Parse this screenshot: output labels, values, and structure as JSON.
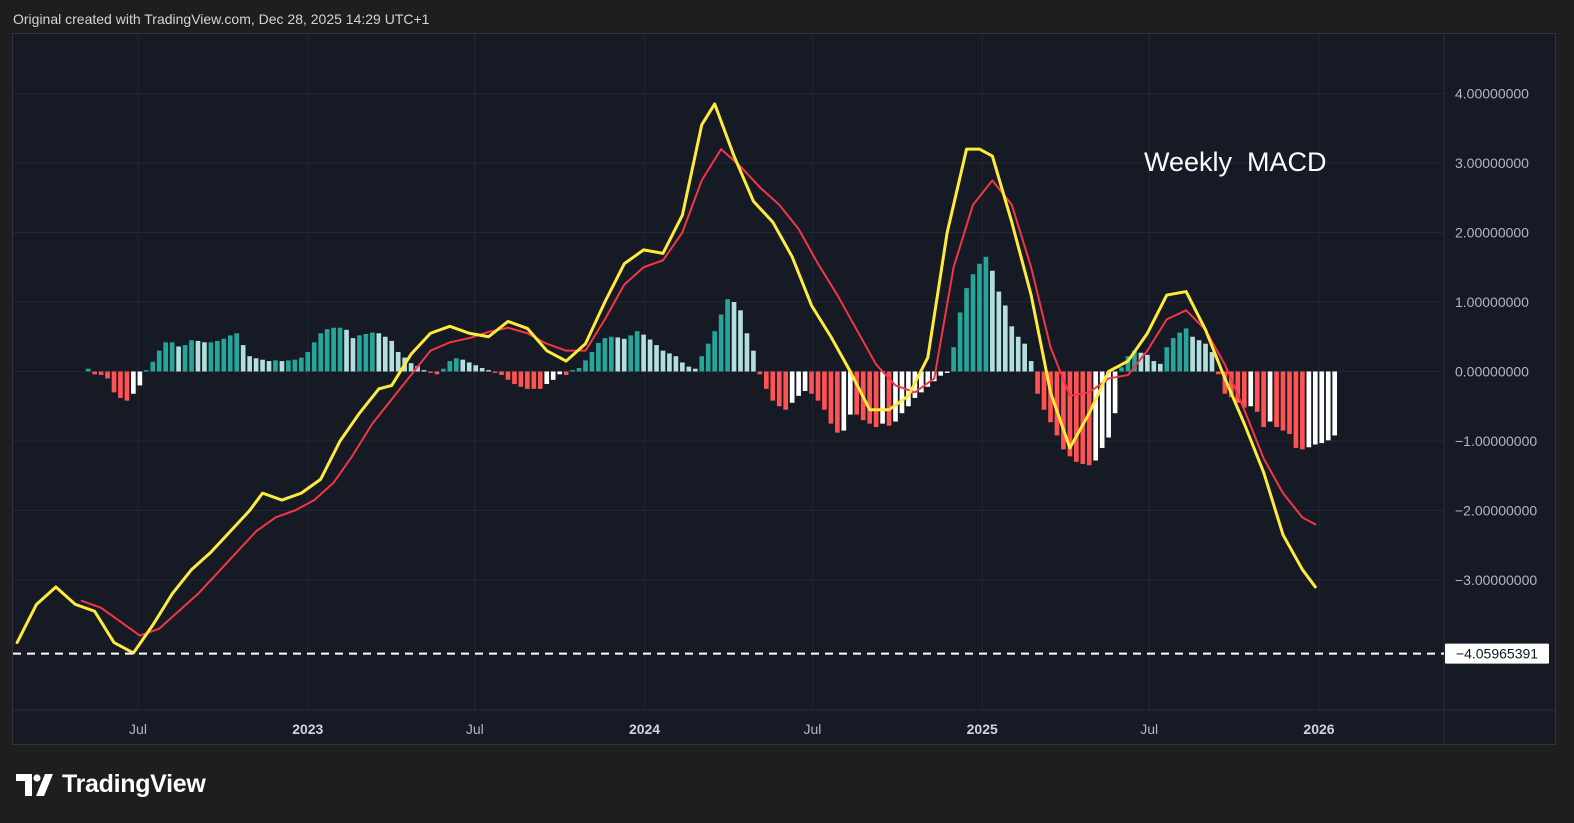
{
  "header": {
    "note": "Original created with TradingView.com, Dec 28, 2025 14:29 UTC+1"
  },
  "brand": {
    "name": "TradingView"
  },
  "colors": {
    "background": "#161a25",
    "grid": "#232734",
    "macd_line": "#ffeb3b",
    "signal_line": "#f23645",
    "hist_pos_rising": "#26a69a",
    "hist_pos_falling": "#b2dfdb",
    "hist_neg_falling": "#ff5252",
    "hist_neg_rising": "#ffffff",
    "axis_text": "#b2b5be"
  },
  "chart_data": {
    "type": "line",
    "title": "",
    "annotation": "Weekly  MACD",
    "xlabel": "",
    "ylabel": "",
    "ylim": [
      -4.8,
      5.2
    ],
    "grid": true,
    "legend": "none",
    "x_ticks": [
      {
        "label": "Jul",
        "date": "2022-07-01",
        "bold": false
      },
      {
        "label": "2023",
        "date": "2023-01-01",
        "bold": true
      },
      {
        "label": "Jul",
        "date": "2023-07-01",
        "bold": false
      },
      {
        "label": "2024",
        "date": "2024-01-01",
        "bold": true
      },
      {
        "label": "Jul",
        "date": "2024-07-01",
        "bold": false
      },
      {
        "label": "2025",
        "date": "2025-01-01",
        "bold": true
      },
      {
        "label": "Jul",
        "date": "2025-07-01",
        "bold": false
      },
      {
        "label": "2026",
        "date": "2026-01-01",
        "bold": true
      }
    ],
    "y_ticks": [
      {
        "value": 4,
        "label": "4.00000000"
      },
      {
        "value": 3,
        "label": "3.00000000"
      },
      {
        "value": 2,
        "label": "2.00000000"
      },
      {
        "value": 1,
        "label": "1.00000000"
      },
      {
        "value": 0,
        "label": "0.00000000"
      },
      {
        "value": -1,
        "label": "−1.00000000"
      },
      {
        "value": -2,
        "label": "−2.00000000"
      },
      {
        "value": -3,
        "label": "−3.00000000"
      }
    ],
    "horizontal_line": {
      "value": -4.05965391,
      "label": "−4.05965391",
      "style": "dashed"
    },
    "series": [
      {
        "name": "",
        "role": "macd",
        "points": [
          [
            "2022-02-20",
            -3.9
          ],
          [
            "2022-03-13",
            -3.35
          ],
          [
            "2022-04-03",
            -3.1
          ],
          [
            "2022-04-24",
            -3.35
          ],
          [
            "2022-05-15",
            -3.45
          ],
          [
            "2022-06-05",
            -3.9
          ],
          [
            "2022-06-26",
            -4.05
          ],
          [
            "2022-07-17",
            -3.65
          ],
          [
            "2022-08-07",
            -3.2
          ],
          [
            "2022-08-28",
            -2.85
          ],
          [
            "2022-09-18",
            -2.6
          ],
          [
            "2022-10-09",
            -2.3
          ],
          [
            "2022-10-30",
            -2.0
          ],
          [
            "2022-11-13",
            -1.75
          ],
          [
            "2022-12-04",
            -1.85
          ],
          [
            "2022-12-25",
            -1.75
          ],
          [
            "2023-01-15",
            -1.55
          ],
          [
            "2023-02-05",
            -1.0
          ],
          [
            "2023-02-26",
            -0.6
          ],
          [
            "2023-03-19",
            -0.25
          ],
          [
            "2023-04-02",
            -0.2
          ],
          [
            "2023-04-23",
            0.25
          ],
          [
            "2023-05-14",
            0.55
          ],
          [
            "2023-06-04",
            0.65
          ],
          [
            "2023-06-25",
            0.55
          ],
          [
            "2023-07-16",
            0.5
          ],
          [
            "2023-08-06",
            0.72
          ],
          [
            "2023-08-27",
            0.62
          ],
          [
            "2023-09-17",
            0.3
          ],
          [
            "2023-10-08",
            0.15
          ],
          [
            "2023-10-29",
            0.4
          ],
          [
            "2023-11-19",
            1.0
          ],
          [
            "2023-12-10",
            1.55
          ],
          [
            "2023-12-31",
            1.75
          ],
          [
            "2024-01-21",
            1.7
          ],
          [
            "2024-02-11",
            2.25
          ],
          [
            "2024-03-03",
            3.55
          ],
          [
            "2024-03-17",
            3.85
          ],
          [
            "2024-04-07",
            3.1
          ],
          [
            "2024-04-28",
            2.45
          ],
          [
            "2024-05-19",
            2.15
          ],
          [
            "2024-06-09",
            1.65
          ],
          [
            "2024-06-30",
            0.95
          ],
          [
            "2024-07-21",
            0.5
          ],
          [
            "2024-08-11",
            0.0
          ],
          [
            "2024-09-01",
            -0.55
          ],
          [
            "2024-09-22",
            -0.55
          ],
          [
            "2024-10-13",
            -0.35
          ],
          [
            "2024-11-03",
            0.2
          ],
          [
            "2024-11-24",
            2.0
          ],
          [
            "2024-12-15",
            3.2
          ],
          [
            "2024-12-29",
            3.2
          ],
          [
            "2025-01-12",
            3.1
          ],
          [
            "2025-02-02",
            2.15
          ],
          [
            "2025-02-23",
            1.1
          ],
          [
            "2025-03-16",
            -0.3
          ],
          [
            "2025-04-06",
            -1.1
          ],
          [
            "2025-04-27",
            -0.6
          ],
          [
            "2025-05-18",
            0.0
          ],
          [
            "2025-06-08",
            0.15
          ],
          [
            "2025-06-29",
            0.55
          ],
          [
            "2025-07-20",
            1.1
          ],
          [
            "2025-08-10",
            1.15
          ],
          [
            "2025-08-31",
            0.6
          ],
          [
            "2025-09-21",
            -0.1
          ],
          [
            "2025-10-12",
            -0.75
          ],
          [
            "2025-11-02",
            -1.45
          ],
          [
            "2025-11-23",
            -2.35
          ],
          [
            "2025-12-14",
            -2.85
          ],
          [
            "2025-12-28",
            -3.1
          ]
        ]
      },
      {
        "name": "",
        "role": "signal",
        "points": [
          [
            "2022-05-01",
            -3.3
          ],
          [
            "2022-05-22",
            -3.4
          ],
          [
            "2022-06-12",
            -3.6
          ],
          [
            "2022-07-03",
            -3.8
          ],
          [
            "2022-07-24",
            -3.7
          ],
          [
            "2022-08-14",
            -3.45
          ],
          [
            "2022-09-04",
            -3.2
          ],
          [
            "2022-09-25",
            -2.9
          ],
          [
            "2022-10-16",
            -2.6
          ],
          [
            "2022-11-06",
            -2.3
          ],
          [
            "2022-11-27",
            -2.1
          ],
          [
            "2022-12-18",
            -2.0
          ],
          [
            "2023-01-08",
            -1.85
          ],
          [
            "2023-01-29",
            -1.6
          ],
          [
            "2023-02-19",
            -1.2
          ],
          [
            "2023-03-12",
            -0.75
          ],
          [
            "2023-04-02",
            -0.4
          ],
          [
            "2023-04-23",
            -0.05
          ],
          [
            "2023-05-14",
            0.3
          ],
          [
            "2023-06-04",
            0.42
          ],
          [
            "2023-06-25",
            0.48
          ],
          [
            "2023-07-16",
            0.57
          ],
          [
            "2023-08-06",
            0.63
          ],
          [
            "2023-08-27",
            0.55
          ],
          [
            "2023-09-17",
            0.4
          ],
          [
            "2023-10-08",
            0.3
          ],
          [
            "2023-10-29",
            0.3
          ],
          [
            "2023-11-19",
            0.75
          ],
          [
            "2023-12-10",
            1.25
          ],
          [
            "2023-12-31",
            1.5
          ],
          [
            "2024-01-21",
            1.6
          ],
          [
            "2024-02-11",
            2.0
          ],
          [
            "2024-03-03",
            2.75
          ],
          [
            "2024-03-24",
            3.2
          ],
          [
            "2024-04-14",
            2.95
          ],
          [
            "2024-05-05",
            2.65
          ],
          [
            "2024-05-26",
            2.4
          ],
          [
            "2024-06-16",
            2.05
          ],
          [
            "2024-07-07",
            1.55
          ],
          [
            "2024-07-28",
            1.1
          ],
          [
            "2024-08-18",
            0.6
          ],
          [
            "2024-09-08",
            0.1
          ],
          [
            "2024-09-29",
            -0.2
          ],
          [
            "2024-10-20",
            -0.3
          ],
          [
            "2024-11-10",
            -0.1
          ],
          [
            "2024-12-01",
            1.5
          ],
          [
            "2024-12-22",
            2.4
          ],
          [
            "2025-01-12",
            2.75
          ],
          [
            "2025-02-02",
            2.4
          ],
          [
            "2025-02-23",
            1.5
          ],
          [
            "2025-03-16",
            0.35
          ],
          [
            "2025-04-06",
            -0.35
          ],
          [
            "2025-04-27",
            -0.3
          ],
          [
            "2025-05-18",
            -0.1
          ],
          [
            "2025-06-08",
            -0.05
          ],
          [
            "2025-06-29",
            0.3
          ],
          [
            "2025-07-20",
            0.75
          ],
          [
            "2025-08-10",
            0.88
          ],
          [
            "2025-08-31",
            0.6
          ],
          [
            "2025-09-21",
            0.1
          ],
          [
            "2025-10-12",
            -0.55
          ],
          [
            "2025-11-02",
            -1.25
          ],
          [
            "2025-11-23",
            -1.75
          ],
          [
            "2025-12-14",
            -2.1
          ],
          [
            "2025-12-28",
            -2.2
          ]
        ]
      },
      {
        "name": "",
        "role": "histogram",
        "start_date": "2022-05-08",
        "interval_days": 7,
        "values": [
          0.04,
          -0.04,
          -0.05,
          -0.1,
          -0.3,
          -0.38,
          -0.42,
          -0.32,
          -0.2,
          0.02,
          0.14,
          0.3,
          0.42,
          0.42,
          0.36,
          0.38,
          0.45,
          0.44,
          0.42,
          0.42,
          0.44,
          0.47,
          0.52,
          0.55,
          0.38,
          0.22,
          0.19,
          0.17,
          0.15,
          0.16,
          0.15,
          0.16,
          0.17,
          0.2,
          0.28,
          0.42,
          0.55,
          0.61,
          0.63,
          0.63,
          0.6,
          0.48,
          0.52,
          0.54,
          0.56,
          0.55,
          0.5,
          0.44,
          0.28,
          0.2,
          0.12,
          0.08,
          0.02,
          -0.02,
          -0.04,
          0.04,
          0.15,
          0.19,
          0.17,
          0.13,
          0.09,
          0.05,
          0.02,
          -0.02,
          -0.05,
          -0.12,
          -0.18,
          -0.22,
          -0.25,
          -0.25,
          -0.25,
          -0.18,
          -0.12,
          -0.04,
          -0.05,
          0.02,
          0.05,
          0.16,
          0.28,
          0.41,
          0.48,
          0.5,
          0.49,
          0.47,
          0.52,
          0.58,
          0.53,
          0.46,
          0.38,
          0.3,
          0.26,
          0.22,
          0.13,
          0.07,
          0.04,
          0.22,
          0.4,
          0.58,
          0.82,
          1.04,
          1.0,
          0.88,
          0.55,
          0.3,
          -0.04,
          -0.25,
          -0.42,
          -0.5,
          -0.55,
          -0.45,
          -0.35,
          -0.28,
          -0.32,
          -0.42,
          -0.55,
          -0.75,
          -0.88,
          -0.85,
          -0.62,
          -0.62,
          -0.7,
          -0.75,
          -0.8,
          -0.75,
          -0.78,
          -0.72,
          -0.6,
          -0.5,
          -0.38,
          -0.3,
          -0.22,
          -0.14,
          -0.06,
          -0.02,
          0.35,
          0.85,
          1.2,
          1.4,
          1.55,
          1.65,
          1.45,
          1.15,
          0.95,
          0.65,
          0.5,
          0.4,
          0.15,
          -0.32,
          -0.55,
          -0.73,
          -0.92,
          -1.12,
          -1.22,
          -1.3,
          -1.33,
          -1.35,
          -1.28,
          -1.1,
          -0.95,
          -0.6,
          0.06,
          0.22,
          0.3,
          0.27,
          0.24,
          0.15,
          0.11,
          0.35,
          0.48,
          0.56,
          0.62,
          0.5,
          0.45,
          0.4,
          0.28,
          -0.04,
          -0.32,
          -0.37,
          -0.45,
          -0.52,
          -0.5,
          -0.58,
          -0.8,
          -0.72,
          -0.8,
          -0.85,
          -0.9,
          -1.1,
          -1.12,
          -1.09,
          -1.05,
          -1.03,
          -0.99,
          -0.92
        ]
      }
    ]
  }
}
